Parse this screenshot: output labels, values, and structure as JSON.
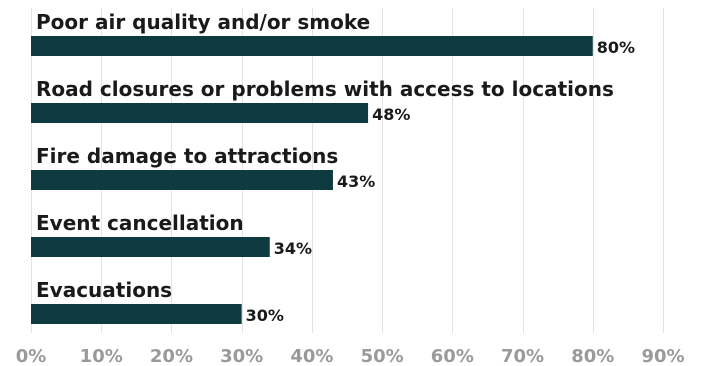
{
  "chart_data": {
    "type": "bar",
    "orientation": "horizontal",
    "categories": [
      "Poor air quality and/or smoke",
      "Road closures or problems with access to locations",
      "Fire damage to attractions",
      "Event cancellation",
      "Evacuations"
    ],
    "values": [
      80,
      48,
      43,
      34,
      30
    ],
    "value_labels": [
      "80%",
      "48%",
      "43%",
      "34%",
      "30%"
    ],
    "xlim": [
      0,
      90
    ],
    "xticks": [
      0,
      10,
      20,
      30,
      40,
      50,
      60,
      70,
      80,
      90
    ],
    "xtick_labels": [
      "0%",
      "10%",
      "20%",
      "30%",
      "40%",
      "50%",
      "60%",
      "70%",
      "80%",
      "90%"
    ],
    "grid": true,
    "bar_color": "#0d3b40",
    "title": "",
    "xlabel": "",
    "ylabel": ""
  }
}
